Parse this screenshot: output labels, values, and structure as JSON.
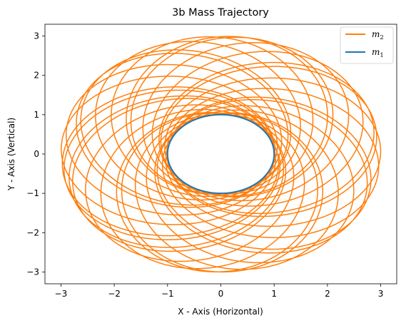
{
  "chart_data": {
    "type": "line",
    "title": "3b Mass Trajectory",
    "xlabel": "X - Axis (Horizontal)",
    "ylabel": "Y - Axis (Vertical)",
    "xlim": [
      -3.3,
      3.3
    ],
    "ylim": [
      -3.3,
      3.3
    ],
    "xticks": [
      -3,
      -2,
      -1,
      0,
      1,
      2,
      3
    ],
    "yticks": [
      -3,
      -2,
      -1,
      0,
      1,
      2,
      3
    ],
    "xtick_labels": [
      "−3",
      "−2",
      "−1",
      "0",
      "1",
      "2",
      "3"
    ],
    "ytick_labels": [
      "−3",
      "−2",
      "−1",
      "0",
      "1",
      "2",
      "3"
    ],
    "grid": false,
    "legend_position": "top-right",
    "series": [
      {
        "name": "m2",
        "legend_base": "m",
        "legend_sub": "2",
        "color": "#ff7f0e",
        "shape": "precessing ellipse, radius between about 1 and 3",
        "r_min": 1.0,
        "r_max": 3.0
      },
      {
        "name": "m1",
        "legend_base": "m",
        "legend_sub": "1",
        "color": "#1f77b4",
        "shape": "circular orbit of radius 1",
        "radius": 1.0
      }
    ]
  }
}
